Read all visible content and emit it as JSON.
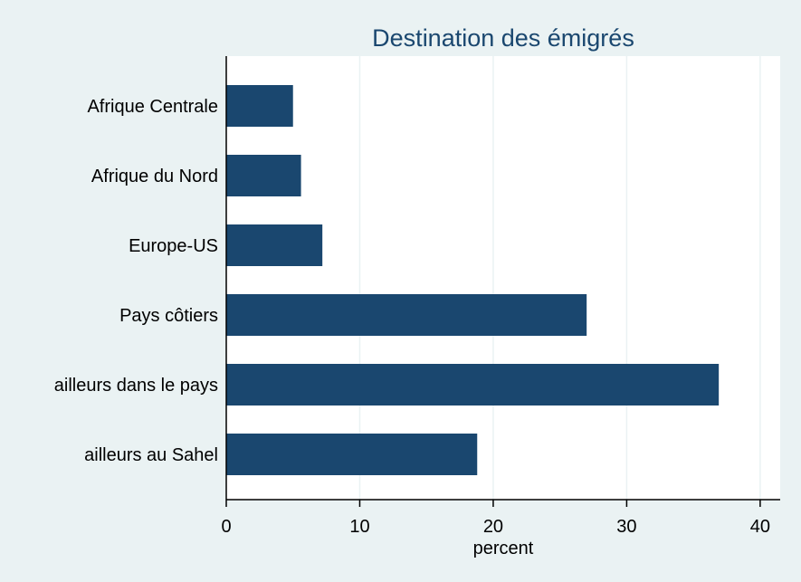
{
  "chart_data": {
    "type": "bar",
    "orientation": "horizontal",
    "title": "Destination des émigrés",
    "xlabel": "percent",
    "ylabel": "",
    "categories": [
      "Afrique Centrale",
      "Afrique du Nord",
      "Europe-US",
      "Pays côtiers",
      "ailleurs dans le pays",
      "ailleurs au Sahel"
    ],
    "values": [
      5.0,
      5.6,
      7.2,
      27.0,
      36.9,
      18.8
    ],
    "xlim": [
      0,
      41.5
    ],
    "xticks": [
      0,
      10,
      20,
      30,
      40
    ],
    "xtick_labels": [
      "0",
      "10",
      "20",
      "30",
      "40"
    ],
    "grid": true,
    "colors": {
      "bar": "#1a476f",
      "plot_background": "#ffffff",
      "page_background": "#eaf2f3",
      "gridline": "#eaf2f3",
      "title": "#1a476f"
    }
  }
}
